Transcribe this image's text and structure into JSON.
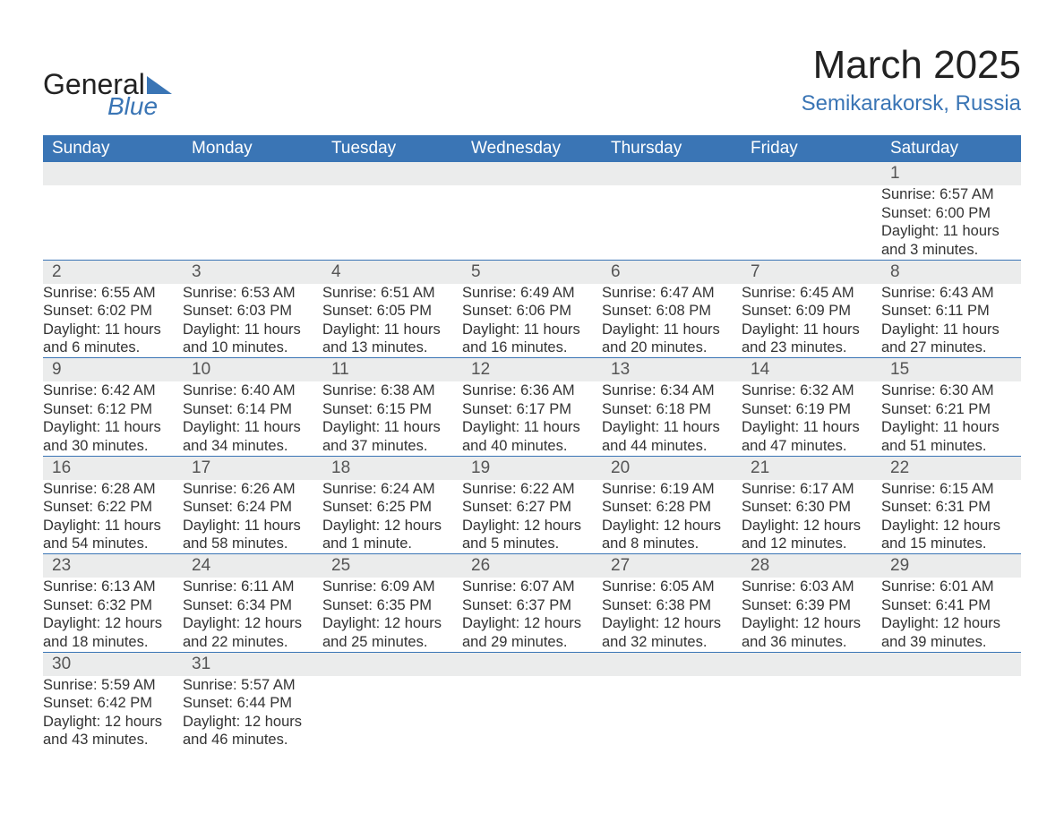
{
  "brand": {
    "name1": "General",
    "name2": "Blue",
    "triangle_color": "#3a75b5"
  },
  "title": "March 2025",
  "location": "Semikarakorsk, Russia",
  "colors": {
    "header_bg": "#3a75b5",
    "header_fg": "#ffffff",
    "daynum_bg": "#ebecec",
    "row_divider": "#3a75b5",
    "text": "#333333",
    "accent": "#3a75b5"
  },
  "typography": {
    "title_fontsize_pt": 33,
    "location_fontsize_pt": 18,
    "dayheader_fontsize_pt": 14,
    "daynum_fontsize_pt": 14,
    "body_fontsize_pt": 12,
    "font_family": "Arial"
  },
  "day_headers": [
    "Sunday",
    "Monday",
    "Tuesday",
    "Wednesday",
    "Thursday",
    "Friday",
    "Saturday"
  ],
  "labels": {
    "sunrise": "Sunrise:",
    "sunset": "Sunset:",
    "daylight": "Daylight:"
  },
  "weeks": [
    [
      null,
      null,
      null,
      null,
      null,
      null,
      {
        "n": "1",
        "sr": "6:57 AM",
        "ss": "6:00 PM",
        "dl": "11 hours and 3 minutes."
      }
    ],
    [
      {
        "n": "2",
        "sr": "6:55 AM",
        "ss": "6:02 PM",
        "dl": "11 hours and 6 minutes."
      },
      {
        "n": "3",
        "sr": "6:53 AM",
        "ss": "6:03 PM",
        "dl": "11 hours and 10 minutes."
      },
      {
        "n": "4",
        "sr": "6:51 AM",
        "ss": "6:05 PM",
        "dl": "11 hours and 13 minutes."
      },
      {
        "n": "5",
        "sr": "6:49 AM",
        "ss": "6:06 PM",
        "dl": "11 hours and 16 minutes."
      },
      {
        "n": "6",
        "sr": "6:47 AM",
        "ss": "6:08 PM",
        "dl": "11 hours and 20 minutes."
      },
      {
        "n": "7",
        "sr": "6:45 AM",
        "ss": "6:09 PM",
        "dl": "11 hours and 23 minutes."
      },
      {
        "n": "8",
        "sr": "6:43 AM",
        "ss": "6:11 PM",
        "dl": "11 hours and 27 minutes."
      }
    ],
    [
      {
        "n": "9",
        "sr": "6:42 AM",
        "ss": "6:12 PM",
        "dl": "11 hours and 30 minutes."
      },
      {
        "n": "10",
        "sr": "6:40 AM",
        "ss": "6:14 PM",
        "dl": "11 hours and 34 minutes."
      },
      {
        "n": "11",
        "sr": "6:38 AM",
        "ss": "6:15 PM",
        "dl": "11 hours and 37 minutes."
      },
      {
        "n": "12",
        "sr": "6:36 AM",
        "ss": "6:17 PM",
        "dl": "11 hours and 40 minutes."
      },
      {
        "n": "13",
        "sr": "6:34 AM",
        "ss": "6:18 PM",
        "dl": "11 hours and 44 minutes."
      },
      {
        "n": "14",
        "sr": "6:32 AM",
        "ss": "6:19 PM",
        "dl": "11 hours and 47 minutes."
      },
      {
        "n": "15",
        "sr": "6:30 AM",
        "ss": "6:21 PM",
        "dl": "11 hours and 51 minutes."
      }
    ],
    [
      {
        "n": "16",
        "sr": "6:28 AM",
        "ss": "6:22 PM",
        "dl": "11 hours and 54 minutes."
      },
      {
        "n": "17",
        "sr": "6:26 AM",
        "ss": "6:24 PM",
        "dl": "11 hours and 58 minutes."
      },
      {
        "n": "18",
        "sr": "6:24 AM",
        "ss": "6:25 PM",
        "dl": "12 hours and 1 minute."
      },
      {
        "n": "19",
        "sr": "6:22 AM",
        "ss": "6:27 PM",
        "dl": "12 hours and 5 minutes."
      },
      {
        "n": "20",
        "sr": "6:19 AM",
        "ss": "6:28 PM",
        "dl": "12 hours and 8 minutes."
      },
      {
        "n": "21",
        "sr": "6:17 AM",
        "ss": "6:30 PM",
        "dl": "12 hours and 12 minutes."
      },
      {
        "n": "22",
        "sr": "6:15 AM",
        "ss": "6:31 PM",
        "dl": "12 hours and 15 minutes."
      }
    ],
    [
      {
        "n": "23",
        "sr": "6:13 AM",
        "ss": "6:32 PM",
        "dl": "12 hours and 18 minutes."
      },
      {
        "n": "24",
        "sr": "6:11 AM",
        "ss": "6:34 PM",
        "dl": "12 hours and 22 minutes."
      },
      {
        "n": "25",
        "sr": "6:09 AM",
        "ss": "6:35 PM",
        "dl": "12 hours and 25 minutes."
      },
      {
        "n": "26",
        "sr": "6:07 AM",
        "ss": "6:37 PM",
        "dl": "12 hours and 29 minutes."
      },
      {
        "n": "27",
        "sr": "6:05 AM",
        "ss": "6:38 PM",
        "dl": "12 hours and 32 minutes."
      },
      {
        "n": "28",
        "sr": "6:03 AM",
        "ss": "6:39 PM",
        "dl": "12 hours and 36 minutes."
      },
      {
        "n": "29",
        "sr": "6:01 AM",
        "ss": "6:41 PM",
        "dl": "12 hours and 39 minutes."
      }
    ],
    [
      {
        "n": "30",
        "sr": "5:59 AM",
        "ss": "6:42 PM",
        "dl": "12 hours and 43 minutes."
      },
      {
        "n": "31",
        "sr": "5:57 AM",
        "ss": "6:44 PM",
        "dl": "12 hours and 46 minutes."
      },
      null,
      null,
      null,
      null,
      null
    ]
  ]
}
